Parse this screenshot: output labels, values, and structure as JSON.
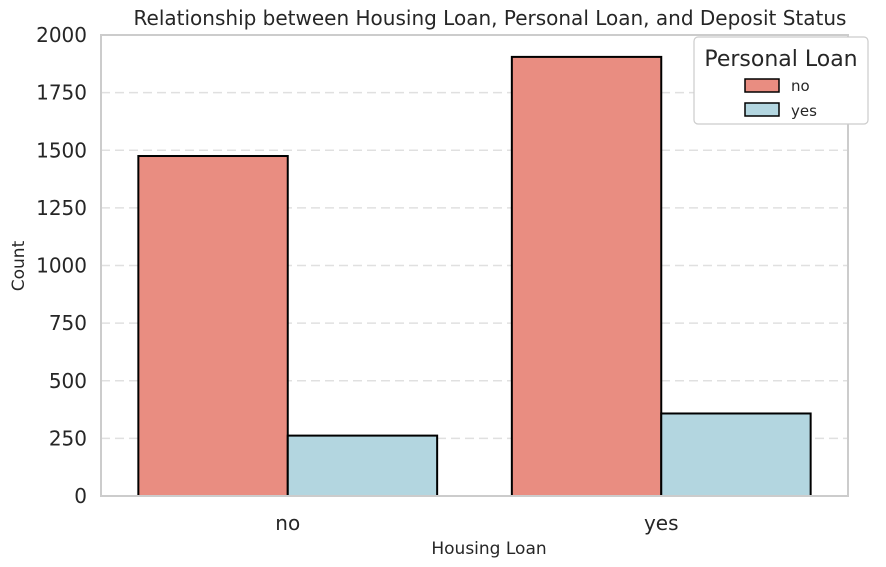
{
  "chart_data": {
    "type": "bar",
    "title": "Relationship between Housing Loan, Personal Loan, and Deposit Status",
    "xlabel": "Housing Loan",
    "ylabel": "Count",
    "categories": [
      "no",
      "yes"
    ],
    "series": [
      {
        "name": "no",
        "values": [
          1475,
          1905
        ],
        "color": "#e98d81"
      },
      {
        "name": "yes",
        "values": [
          262,
          358
        ],
        "color": "#b3d6e0"
      }
    ],
    "ylim": [
      0,
      2000
    ],
    "yticks": [
      0,
      250,
      500,
      750,
      1000,
      1250,
      1500,
      1750,
      2000
    ],
    "grid": true,
    "legend": {
      "title": "Personal Loan",
      "placement": "top-right"
    },
    "bar_edge_color": "#000000",
    "grid_color": "#e0e0e0",
    "spine_color": "#cccccc"
  }
}
